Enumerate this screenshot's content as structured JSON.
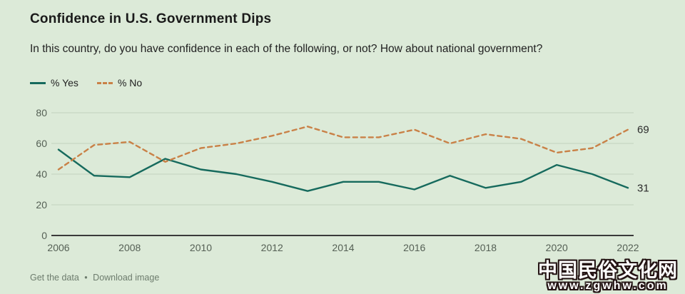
{
  "title": "Confidence in U.S. Government Dips",
  "subtitle": "In this country, do you have confidence in each of the following, or not? How about national government?",
  "legend": [
    {
      "label": "% Yes"
    },
    {
      "label": "% No"
    }
  ],
  "footer": {
    "get_data_label": "Get the data",
    "separator": "•",
    "download_label": "Download image"
  },
  "watermark": {
    "line1": "中国民俗文化网",
    "line2": "www.zgwhw.com"
  },
  "colors": {
    "background": "#dcead8",
    "yes_line": "#166a5d",
    "no_line": "#c98147",
    "grid": "#c7d8c3",
    "axis": "#3a3a3a",
    "tick_text": "#556055",
    "end_label_text": "#2b2b2b"
  },
  "chart_data": {
    "type": "line",
    "x": [
      2006,
      2007,
      2008,
      2009,
      2010,
      2011,
      2012,
      2013,
      2014,
      2015,
      2016,
      2017,
      2018,
      2019,
      2020,
      2021,
      2022
    ],
    "series": [
      {
        "name": "% Yes",
        "style": "solid",
        "color_key": "yes_line",
        "end_label": "31",
        "values": [
          56,
          39,
          38,
          50,
          43,
          40,
          35,
          29,
          35,
          35,
          30,
          39,
          31,
          35,
          46,
          40,
          31
        ]
      },
      {
        "name": "% No",
        "style": "dashed",
        "color_key": "no_line",
        "end_label": "69",
        "values": [
          43,
          59,
          61,
          48,
          57,
          60,
          65,
          71,
          64,
          64,
          69,
          60,
          66,
          63,
          54,
          57,
          69
        ]
      }
    ],
    "ylim": [
      0,
      80
    ],
    "yticks": [
      0,
      20,
      40,
      60,
      80
    ],
    "xticks": [
      2006,
      2008,
      2010,
      2012,
      2014,
      2016,
      2018,
      2020,
      2022
    ],
    "grid": true,
    "legend_position": "top-left"
  }
}
